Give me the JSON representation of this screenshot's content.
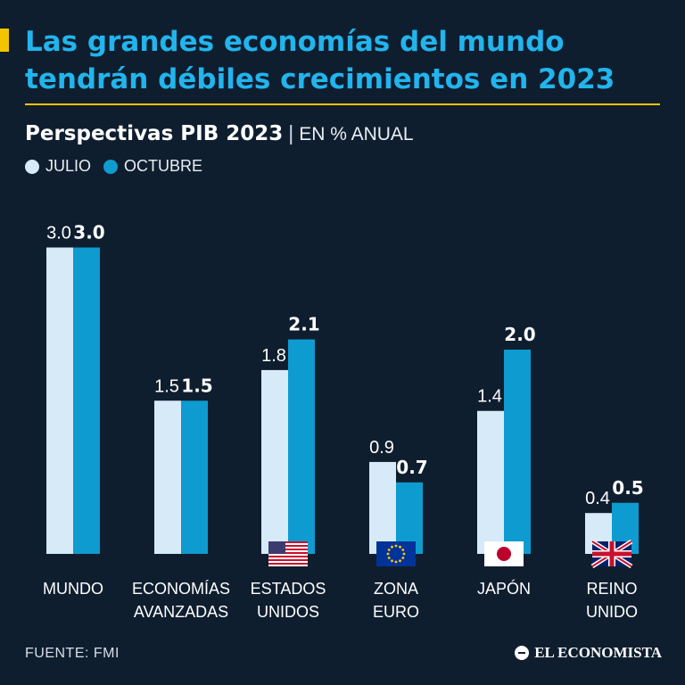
{
  "title": "Las grandes economías del mundo tendrán débiles crecimientos en 2023",
  "subtitle": "Perspectivas PIB 2023",
  "subtitle_separator": "|",
  "unit_label": "EN % ANUAL",
  "source": "FUENTE: FMI",
  "brand": "EL ECONOMISTA",
  "colors": {
    "background": "#0f1e2f",
    "title": "#22b4ec",
    "accent": "#f5c400",
    "julio": "#d6eaf8",
    "octubre": "#0e9bd0"
  },
  "chart_data": {
    "type": "bar",
    "title": "Perspectivas PIB 2023",
    "ylabel": "EN % ANUAL",
    "xlabel": "",
    "ylim": [
      0,
      3.0
    ],
    "categories": [
      {
        "label": "MUNDO",
        "flag": ""
      },
      {
        "label": "ECONOMÍAS AVANZADAS",
        "flag": ""
      },
      {
        "label": "ESTADOS UNIDOS",
        "flag": "us-flag-icon"
      },
      {
        "label": "ZONA EURO",
        "flag": "eu-flag-icon"
      },
      {
        "label": "JAPÓN",
        "flag": "japan-flag-icon"
      },
      {
        "label": "REINO UNIDO",
        "flag": "uk-flag-icon"
      }
    ],
    "category_lines": [
      [
        "MUNDO"
      ],
      [
        "ECONOMÍAS",
        "AVANZADAS"
      ],
      [
        "ESTADOS",
        "UNIDOS"
      ],
      [
        "ZONA",
        "EURO"
      ],
      [
        "JAPÓN"
      ],
      [
        "REINO",
        "UNIDO"
      ]
    ],
    "series": [
      {
        "name": "JULIO",
        "values": [
          3.0,
          1.5,
          1.8,
          0.9,
          1.4,
          0.4
        ],
        "labels": [
          "3.0",
          "1.5",
          "1.8",
          "0.9",
          "1.4",
          "0.4"
        ]
      },
      {
        "name": "OCTUBRE",
        "values": [
          3.0,
          1.5,
          2.1,
          0.7,
          2.0,
          0.5
        ],
        "labels": [
          "3.0",
          "1.5",
          "2.1",
          "0.7",
          "2.0",
          "0.5"
        ]
      }
    ]
  }
}
